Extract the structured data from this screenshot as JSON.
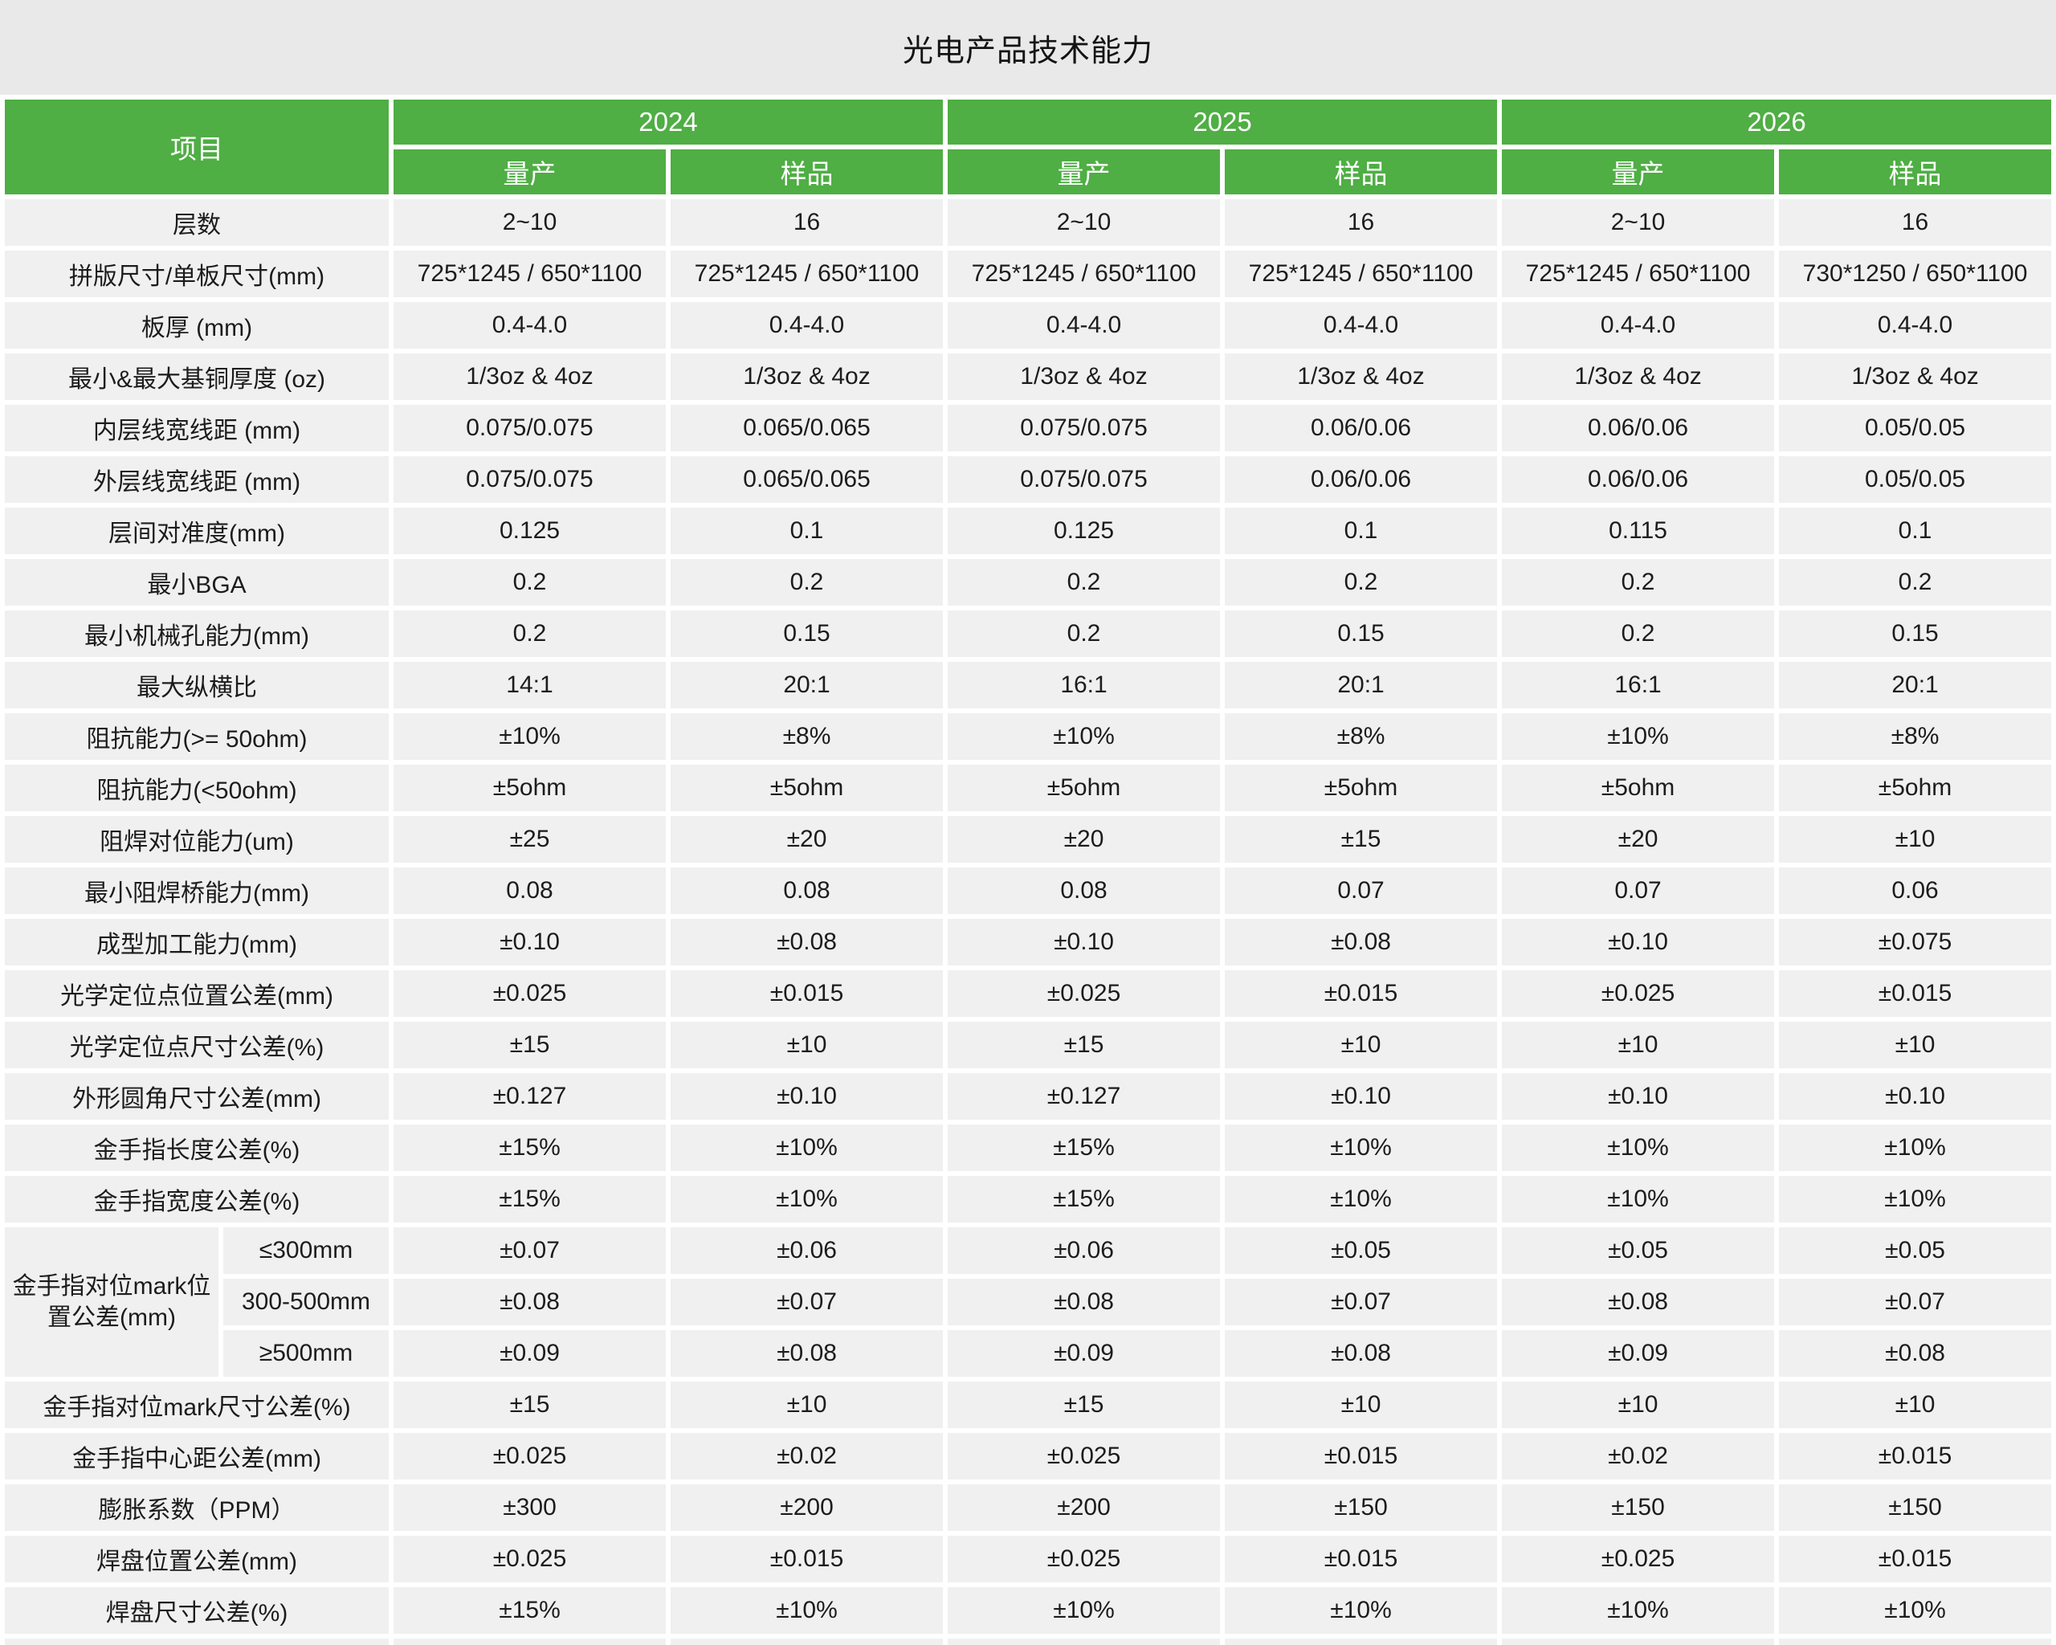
{
  "title": "光电产品技术能力",
  "colors": {
    "header_green": "#4fae44",
    "header_text": "#ffffff",
    "row_bg": "#f0f0f0",
    "title_band_bg": "#e9e9e9",
    "gutter": "#ffffff",
    "text": "#1c1c1c"
  },
  "header": {
    "item_label": "项目",
    "years": [
      "2024",
      "2025",
      "2026"
    ],
    "sub_columns": [
      "量产",
      "样品"
    ]
  },
  "rows": [
    {
      "label": "层数",
      "values": [
        "2~10",
        "16",
        "2~10",
        "16",
        "2~10",
        "16"
      ]
    },
    {
      "label": "拼版尺寸/单板尺寸(mm)",
      "values": [
        "725*1245 / 650*1100",
        "725*1245 / 650*1100",
        "725*1245 / 650*1100",
        "725*1245 / 650*1100",
        "725*1245 / 650*1100",
        "730*1250 / 650*1100"
      ]
    },
    {
      "label": "板厚 (mm)",
      "values": [
        "0.4-4.0",
        "0.4-4.0",
        "0.4-4.0",
        "0.4-4.0",
        "0.4-4.0",
        "0.4-4.0"
      ]
    },
    {
      "label": "最小&最大基铜厚度 (oz)",
      "values": [
        "1/3oz & 4oz",
        "1/3oz & 4oz",
        "1/3oz & 4oz",
        "1/3oz & 4oz",
        "1/3oz & 4oz",
        "1/3oz & 4oz"
      ]
    },
    {
      "label": "内层线宽线距 (mm)",
      "values": [
        "0.075/0.075",
        "0.065/0.065",
        "0.075/0.075",
        "0.06/0.06",
        "0.06/0.06",
        "0.05/0.05"
      ]
    },
    {
      "label": "外层线宽线距 (mm)",
      "values": [
        "0.075/0.075",
        "0.065/0.065",
        "0.075/0.075",
        "0.06/0.06",
        "0.06/0.06",
        "0.05/0.05"
      ]
    },
    {
      "label": "层间对准度(mm)",
      "values": [
        "0.125",
        "0.1",
        "0.125",
        "0.1",
        "0.115",
        "0.1"
      ]
    },
    {
      "label": "最小BGA",
      "values": [
        "0.2",
        "0.2",
        "0.2",
        "0.2",
        "0.2",
        "0.2"
      ]
    },
    {
      "label": "最小机械孔能力(mm)",
      "values": [
        "0.2",
        "0.15",
        "0.2",
        "0.15",
        "0.2",
        "0.15"
      ]
    },
    {
      "label": "最大纵横比",
      "values": [
        "14:1",
        "20:1",
        "16:1",
        "20:1",
        "16:1",
        "20:1"
      ]
    },
    {
      "label": "阻抗能力(>= 50ohm)",
      "values": [
        "±10%",
        "±8%",
        "±10%",
        "±8%",
        "±10%",
        "±8%"
      ]
    },
    {
      "label": "阻抗能力(<50ohm)",
      "values": [
        "±5ohm",
        "±5ohm",
        "±5ohm",
        "±5ohm",
        "±5ohm",
        "±5ohm"
      ]
    },
    {
      "label": "阻焊对位能力(um)",
      "values": [
        "±25",
        "±20",
        "±20",
        "±15",
        "±20",
        "±10"
      ]
    },
    {
      "label": "最小阻焊桥能力(mm)",
      "values": [
        "0.08",
        "0.08",
        "0.08",
        "0.07",
        "0.07",
        "0.06"
      ]
    },
    {
      "label": "成型加工能力(mm)",
      "values": [
        "±0.10",
        "±0.08",
        "±0.10",
        "±0.08",
        "±0.10",
        "±0.075"
      ]
    },
    {
      "label": "光学定位点位置公差(mm)",
      "values": [
        "±0.025",
        "±0.015",
        "±0.025",
        "±0.015",
        "±0.025",
        "±0.015"
      ]
    },
    {
      "label": "光学定位点尺寸公差(%)",
      "values": [
        "±15",
        "±10",
        "±15",
        "±10",
        "±10",
        "±10"
      ]
    },
    {
      "label": "外形圆角尺寸公差(mm)",
      "values": [
        "±0.127",
        "±0.10",
        "±0.127",
        "±0.10",
        "±0.10",
        "±0.10"
      ]
    },
    {
      "label": "金手指长度公差(%)",
      "values": [
        "±15%",
        "±10%",
        "±15%",
        "±10%",
        "±10%",
        "±10%"
      ]
    },
    {
      "label": "金手指宽度公差(%)",
      "values": [
        "±15%",
        "±10%",
        "±15%",
        "±10%",
        "±10%",
        "±10%"
      ]
    },
    {
      "label": "金手指对位mark位置公差(mm)",
      "sub_rows": [
        {
          "label": "≤300mm",
          "values": [
            "±0.07",
            "±0.06",
            "±0.06",
            "±0.05",
            "±0.05",
            "±0.05"
          ]
        },
        {
          "label": "300-500mm",
          "values": [
            "±0.08",
            "±0.07",
            "±0.08",
            "±0.07",
            "±0.08",
            "±0.07"
          ]
        },
        {
          "label": "≥500mm",
          "values": [
            "±0.09",
            "±0.08",
            "±0.09",
            "±0.08",
            "±0.09",
            "±0.08"
          ]
        }
      ]
    },
    {
      "label": "金手指对位mark尺寸公差(%)",
      "values": [
        "±15",
        "±10",
        "±15",
        "±10",
        "±10",
        "±10"
      ]
    },
    {
      "label": "金手指中心距公差(mm)",
      "values": [
        "±0.025",
        "±0.02",
        "±0.025",
        "±0.015",
        "±0.02",
        "±0.015"
      ]
    },
    {
      "label": "膨胀系数（PPM）",
      "values": [
        "±300",
        "±200",
        "±200",
        "±150",
        "±150",
        "±150"
      ]
    },
    {
      "label": "焊盘位置公差(mm)",
      "values": [
        "±0.025",
        "±0.015",
        "±0.025",
        "±0.015",
        "±0.025",
        "±0.015"
      ]
    },
    {
      "label": "焊盘尺寸公差(%)",
      "values": [
        "±15%",
        "±10%",
        "±10%",
        "±10%",
        "±10%",
        "±10%"
      ]
    }
  ]
}
